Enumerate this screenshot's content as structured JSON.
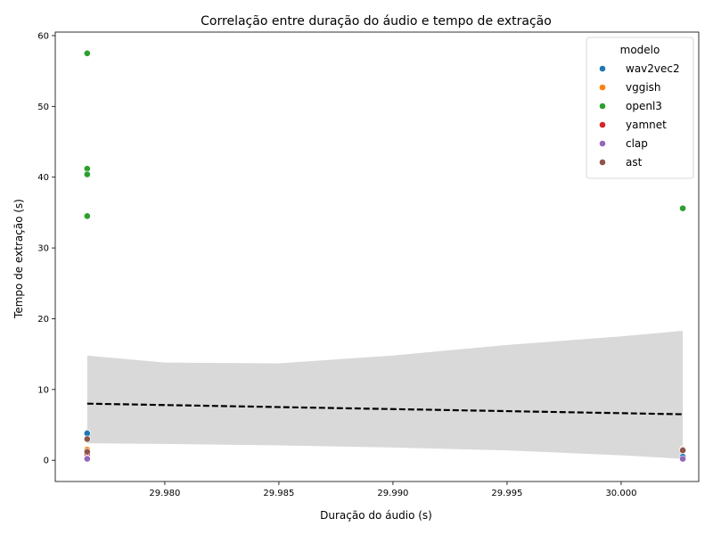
{
  "chart_data": {
    "type": "scatter",
    "title": "Correlação entre duração do áudio e tempo de extração",
    "xlabel": "Duração do áudio (s)",
    "ylabel": "Tempo de extração (s)",
    "xlim": [
      29.9752,
      30.0034
    ],
    "ylim": [
      -3.0,
      60.5
    ],
    "xticks": [
      29.98,
      29.985,
      29.99,
      29.995,
      30.0
    ],
    "xtick_labels": [
      "29.980",
      "29.985",
      "29.990",
      "29.995",
      "30.000"
    ],
    "yticks": [
      0,
      10,
      20,
      30,
      40,
      50,
      60
    ],
    "ytick_labels": [
      "0",
      "10",
      "20",
      "30",
      "40",
      "50",
      "60"
    ],
    "grid": false,
    "legend": {
      "title": "modelo",
      "position": "top-right"
    },
    "series": [
      {
        "name": "wav2vec2",
        "color": "#1f77b4",
        "points": [
          [
            29.9766,
            3.9
          ],
          [
            29.9766,
            3.8
          ],
          [
            30.0027,
            0.5
          ]
        ]
      },
      {
        "name": "vggish",
        "color": "#ff7f0e",
        "points": [
          [
            29.9766,
            1.5
          ],
          [
            29.9766,
            1.2
          ],
          [
            30.0027,
            1.6
          ]
        ]
      },
      {
        "name": "openl3",
        "color": "#2ca02c",
        "points": [
          [
            29.9766,
            57.5
          ],
          [
            29.9766,
            41.2
          ],
          [
            29.9766,
            40.4
          ],
          [
            29.9766,
            34.5
          ],
          [
            30.0027,
            35.6
          ]
        ]
      },
      {
        "name": "yamnet",
        "color": "#d62728",
        "points": [
          [
            29.9766,
            1.0
          ],
          [
            29.9766,
            0.8
          ],
          [
            30.0027,
            1.5
          ]
        ]
      },
      {
        "name": "clap",
        "color": "#9467bd",
        "points": [
          [
            29.9766,
            0.3
          ],
          [
            29.9766,
            0.2
          ],
          [
            30.0027,
            0.2
          ]
        ]
      },
      {
        "name": "ast",
        "color": "#8c564b",
        "points": [
          [
            29.9766,
            3.0
          ],
          [
            29.9766,
            1.2
          ],
          [
            30.0027,
            1.4
          ]
        ]
      }
    ],
    "regression": {
      "style": "dashed",
      "color": "#000000",
      "x": [
        29.9766,
        30.0027
      ],
      "y": [
        8.0,
        6.5
      ],
      "ci_color": "#d9d9d9",
      "ci_lower": [
        [
          29.9766,
          2.4
        ],
        [
          29.98,
          2.3
        ],
        [
          29.985,
          2.1
        ],
        [
          29.99,
          1.8
        ],
        [
          29.995,
          1.4
        ],
        [
          30.0,
          0.7
        ],
        [
          30.0027,
          0.2
        ]
      ],
      "ci_upper": [
        [
          29.9766,
          14.8
        ],
        [
          29.98,
          13.8
        ],
        [
          29.985,
          13.7
        ],
        [
          29.99,
          14.8
        ],
        [
          29.995,
          16.3
        ],
        [
          30.0,
          17.5
        ],
        [
          30.0027,
          18.3
        ]
      ]
    }
  }
}
